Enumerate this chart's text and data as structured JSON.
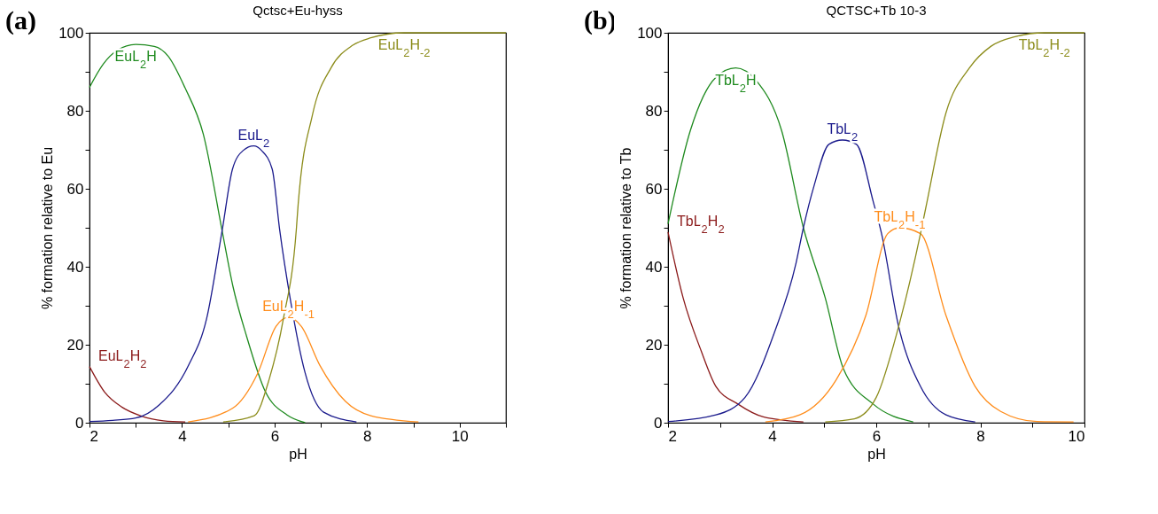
{
  "chart_data": [
    {
      "type": "line",
      "title": "Qctsc+Eu-hyss",
      "xlabel": "pH",
      "ylabel": "% formation relative to Eu",
      "annotations": [
        "(a)"
      ],
      "xlim": [
        2,
        11
      ],
      "ylim": [
        0,
        100
      ],
      "xticks": [
        2,
        {
          "value": 3,
          "label": null
        },
        4,
        {
          "value": 5,
          "label": null
        },
        6,
        {
          "value": 7,
          "label": null
        },
        8,
        {
          "value": 9,
          "label": null
        },
        10,
        {
          "value": 11,
          "label": null
        }
      ],
      "yticks": [
        0,
        {
          "value": 10,
          "label": null
        },
        20,
        {
          "value": 30,
          "label": null
        },
        40,
        {
          "value": 50,
          "label": null
        },
        60,
        {
          "value": 70,
          "label": null
        },
        80,
        {
          "value": 90,
          "label": null
        },
        100
      ],
      "series": [
        {
          "name": "EuL$_{2}$H$_{2}$",
          "color": "#8b1a1a",
          "x": [
            2,
            2.33,
            2.7,
            3.1,
            3.6,
            4.07
          ],
          "values": [
            14.4,
            7.8,
            4,
            1.8,
            0.5,
            0.2
          ]
        },
        {
          "name": "EuL$_{2}$H",
          "color": "#1e8a1e",
          "x": [
            2,
            2.3,
            2.6,
            3,
            3.4,
            3.7,
            4.06,
            4.46,
            4.87,
            5.1,
            5.4,
            5.8,
            6.27,
            6.66
          ],
          "values": [
            86,
            92,
            95.5,
            97,
            96.5,
            94,
            86,
            74,
            49,
            35,
            22,
            8,
            2,
            0
          ]
        },
        {
          "name": "EuL$_{2}$",
          "color": "#1a1a8c",
          "x": [
            2,
            2.5,
            3,
            3.5,
            4.14,
            4.53,
            4.87,
            5.09,
            5.32,
            5.55,
            5.72,
            5.95,
            6.11,
            6.35,
            6.66,
            7.06,
            7.77
          ],
          "values": [
            0.3,
            0.6,
            1.2,
            4.5,
            14.7,
            26.6,
            49.5,
            65,
            69.8,
            71,
            69.8,
            65,
            49.5,
            31,
            12.8,
            2.7,
            0.2
          ]
        },
        {
          "name": "EuL$_{2}$H$_{-1}$",
          "color": "#ff8c1a",
          "x": [
            4.13,
            5.09,
            5.64,
            6.03,
            6.3,
            6.58,
            6.98,
            7.53,
            8.08,
            9.11
          ],
          "values": [
            0.2,
            3.7,
            12.8,
            24.7,
            27,
            24.7,
            14.7,
            5.5,
            1.8,
            0.2
          ]
        },
        {
          "name": "EuL$_{2}$H$_{-2}$",
          "color": "#8c8c1a",
          "x": [
            4.89,
            5.56,
            5.88,
            6.19,
            6.47,
            6.51,
            6.82,
            7.22,
            7.69,
            8.08,
            8.8,
            11
          ],
          "values": [
            0.2,
            1.8,
            11,
            26.6,
            49.5,
            56,
            79,
            91,
            96.8,
            98.7,
            100,
            100
          ]
        }
      ]
    },
    {
      "type": "line",
      "title": "QCTSC+Tb 10-3",
      "xlabel": "pH",
      "ylabel": "% formation relative to Tb",
      "annotations": [
        "(b)"
      ],
      "xlim": [
        2,
        10
      ],
      "ylim": [
        0,
        100
      ],
      "xticks": [
        2,
        {
          "value": 3,
          "label": null
        },
        4,
        {
          "value": 5,
          "label": null
        },
        6,
        {
          "value": 7,
          "label": null
        },
        8,
        {
          "value": 9,
          "label": null
        },
        10
      ],
      "yticks": [
        0,
        {
          "value": 10,
          "label": null
        },
        20,
        {
          "value": 30,
          "label": null
        },
        40,
        {
          "value": 50,
          "label": null
        },
        60,
        {
          "value": 70,
          "label": null
        },
        80,
        {
          "value": 90,
          "label": null
        },
        100
      ],
      "series": [
        {
          "name": "TbL$_{2}$H$_{2}$",
          "color": "#8b1a1a",
          "x": [
            2,
            2.29,
            2.64,
            2.92,
            3.34,
            3.83,
            4.6
          ],
          "values": [
            48.9,
            32,
            18.3,
            9.3,
            4.8,
            1.5,
            0.2
          ]
        },
        {
          "name": "TbL$_{2}$H",
          "color": "#1e8a1e",
          "x": [
            2,
            2.43,
            2.92,
            3.3,
            3.69,
            4.18,
            4.6,
            5.02,
            5.37,
            5.94,
            6.71
          ],
          "values": [
            51,
            75,
            88.6,
            91,
            87.8,
            75,
            50,
            32,
            13.8,
            4.8,
            0.2
          ]
        },
        {
          "name": "TbL$_{2}$",
          "color": "#1a1a8c",
          "x": [
            2,
            2.92,
            3.48,
            4.04,
            4.46,
            4.6,
            4.81,
            5.09,
            5.35,
            5.62,
            5.94,
            6.1,
            6.43,
            6.85,
            7.34,
            7.9
          ],
          "values": [
            0.3,
            2,
            6.5,
            23,
            41,
            50,
            61,
            71.4,
            72.5,
            71.4,
            56.8,
            48.6,
            24.7,
            9.3,
            2,
            0.2
          ]
        },
        {
          "name": "TbL$_{2}$H$_{-1}$",
          "color": "#ff8c1a",
          "x": [
            3.87,
            4.53,
            5.23,
            5.8,
            6.22,
            6.45,
            6.85,
            7.34,
            7.9,
            8.39,
            9.09,
            9.79
          ],
          "values": [
            0.2,
            2,
            11,
            27.5,
            48.5,
            50,
            48.5,
            27.5,
            9.3,
            2.9,
            0.3,
            0.2
          ]
        },
        {
          "name": "TbL$_{2}$H$_{-2}$",
          "color": "#8c8c1a",
          "x": [
            5.02,
            5.58,
            6,
            6.43,
            6.85,
            6.95,
            7.34,
            7.79,
            8.2,
            8.67,
            9.23,
            10
          ],
          "values": [
            0.2,
            1,
            6.5,
            24.7,
            48.5,
            55,
            79.5,
            91,
            96.5,
            99,
            100,
            100
          ]
        }
      ]
    }
  ]
}
